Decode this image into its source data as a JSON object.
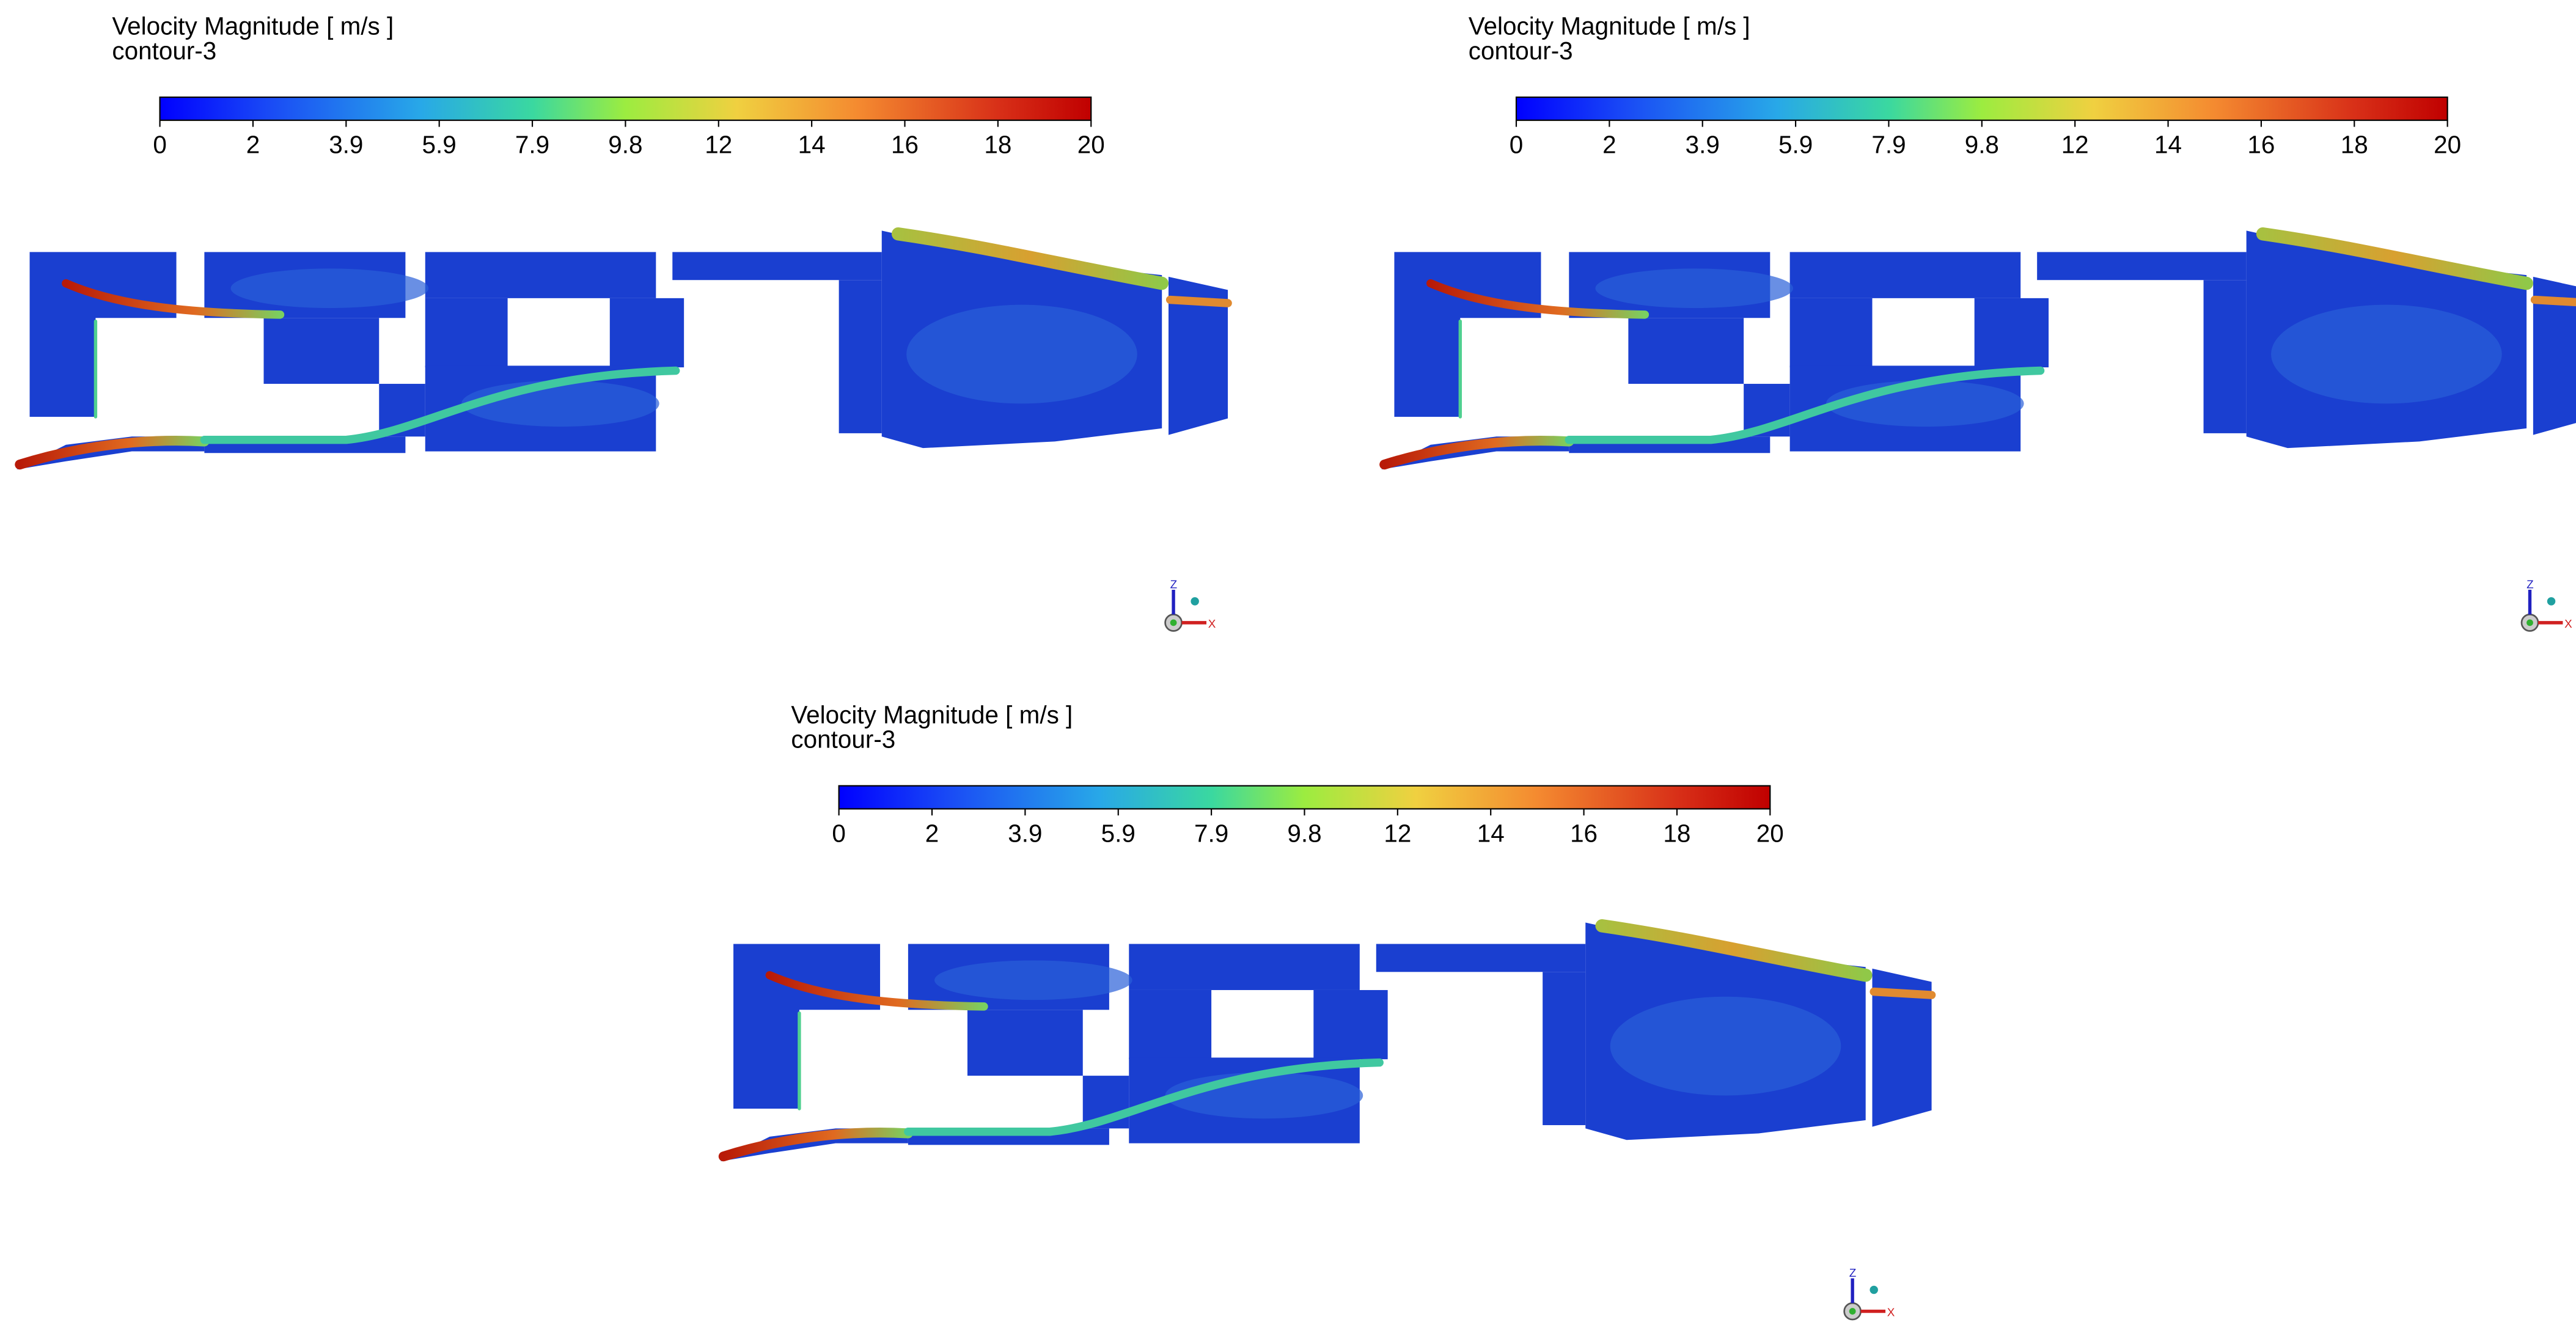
{
  "panels": [
    {
      "title": "Velocity Magnitude [ m/s ]",
      "subtitle": "contour-3",
      "colorbar": {
        "ticks": [
          "0",
          "2",
          "3.9",
          "5.9",
          "7.9",
          "9.8",
          "12",
          "14",
          "16",
          "18",
          "20"
        ]
      },
      "axes": {
        "z": "Z",
        "x": "X"
      }
    },
    {
      "title": "Velocity Magnitude [ m/s ]",
      "subtitle": "contour-3",
      "colorbar": {
        "ticks": [
          "0",
          "2",
          "3.9",
          "5.9",
          "7.9",
          "9.8",
          "12",
          "14",
          "16",
          "18",
          "20"
        ]
      },
      "axes": {
        "z": "Z",
        "x": "X"
      }
    },
    {
      "title": "Velocity Magnitude [ m/s ]",
      "subtitle": "contour-3",
      "colorbar": {
        "ticks": [
          "0",
          "2",
          "3.9",
          "5.9",
          "7.9",
          "9.8",
          "12",
          "14",
          "16",
          "18",
          "20"
        ]
      },
      "axes": {
        "z": "Z",
        "x": "X"
      }
    }
  ]
}
